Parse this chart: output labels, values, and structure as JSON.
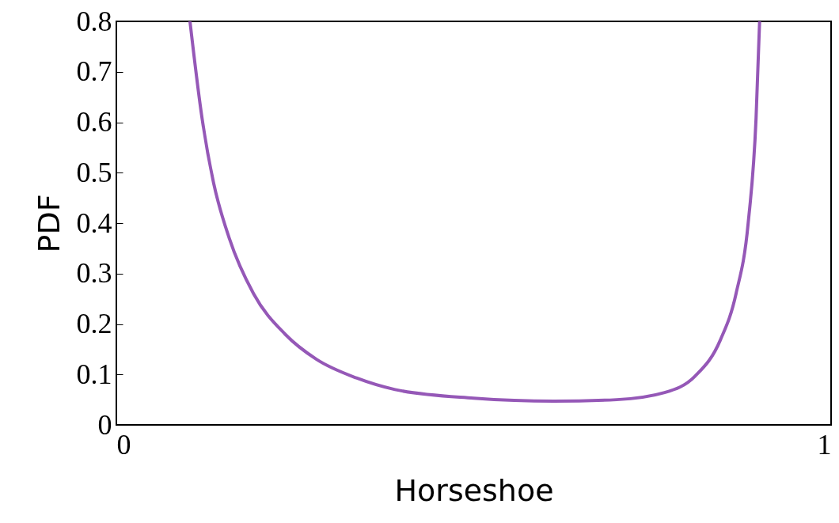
{
  "chart_data": {
    "type": "line",
    "xlabel": "Horseshoe",
    "ylabel": "PDF",
    "xlim": [
      0,
      1
    ],
    "ylim": [
      0,
      0.8
    ],
    "xticks": [
      0,
      1
    ],
    "yticks": [
      0,
      0.1,
      0.2,
      0.3,
      0.4,
      0.5,
      0.6,
      0.7,
      0.8
    ],
    "grid": false,
    "marker": "none",
    "line_style": "solid",
    "series": [
      {
        "color": "#9558b7",
        "x": [
          0.103,
          0.12,
          0.136,
          0.158,
          0.192,
          0.236,
          0.28,
          0.336,
          0.39,
          0.5,
          0.612,
          0.7,
          0.767,
          0.81,
          0.845,
          0.867,
          0.884,
          0.895,
          0.9
        ],
        "values": [
          0.8,
          0.607,
          0.48,
          0.37,
          0.26,
          0.18,
          0.13,
          0.093,
          0.07,
          0.053,
          0.047,
          0.05,
          0.064,
          0.097,
          0.168,
          0.26,
          0.4,
          0.607,
          0.8
        ]
      }
    ]
  }
}
